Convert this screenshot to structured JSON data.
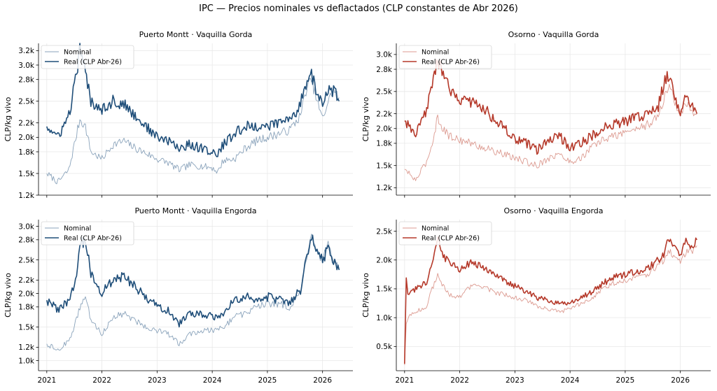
{
  "figure": {
    "title": "IPC — Precios nominales vs deflactados (CLP constantes de Abr 2026)"
  },
  "colors": {
    "blue_real": "#1f4e79",
    "blue_nominal": "#8aa3bb",
    "red_real": "#b5392a",
    "red_nominal": "#dc9a90",
    "grid": "#e8e8e8"
  },
  "chart_data": [
    {
      "type": "line",
      "title": "Puerto Montt · Vaquilla Gorda",
      "ylabel": "CLP/kg vivo",
      "xlabel": "",
      "ylim": [
        1200,
        3300
      ],
      "yticks": [
        1200,
        1500,
        1800,
        2000,
        2200,
        2500,
        2800,
        3000,
        3200
      ],
      "ytick_labels": [
        "1.2k",
        "1.5k",
        "1.8k",
        "2.0k",
        "2.2k",
        "2.5k",
        "2.8k",
        "3.0k",
        "3.2k"
      ],
      "xlim": [
        2020.85,
        2026.55
      ],
      "xticks": [
        2021,
        2022,
        2023,
        2024,
        2025,
        2026
      ],
      "xtick_labels": [
        "",
        "",
        "",
        "",
        "",
        ""
      ],
      "legend": "top-left",
      "palette": "blue",
      "grid": true,
      "series": [
        {
          "name": "Nominal",
          "role": "nominal",
          "x": [
            2021.0,
            2021.2,
            2021.4,
            2021.5,
            2021.6,
            2021.7,
            2021.8,
            2022.0,
            2022.2,
            2022.4,
            2022.6,
            2022.8,
            2023.0,
            2023.2,
            2023.4,
            2023.6,
            2023.8,
            2024.0,
            2024.1,
            2024.2,
            2024.4,
            2024.6,
            2024.8,
            2025.0,
            2025.2,
            2025.4,
            2025.5,
            2025.6,
            2025.7,
            2025.8,
            2025.9,
            2026.0,
            2026.1,
            2026.2,
            2026.3
          ],
          "y": [
            1500,
            1380,
            1550,
            1900,
            2250,
            2150,
            1800,
            1700,
            1900,
            1950,
            1850,
            1780,
            1700,
            1650,
            1550,
            1620,
            1600,
            1580,
            1520,
            1680,
            1700,
            1850,
            1950,
            2000,
            2050,
            2100,
            2200,
            2300,
            2650,
            2800,
            2500,
            2250,
            2500,
            2650,
            2550
          ]
        },
        {
          "name": "Real (CLP Abr-26)",
          "role": "real",
          "x": [
            2021.0,
            2021.2,
            2021.4,
            2021.5,
            2021.6,
            2021.7,
            2021.8,
            2022.0,
            2022.2,
            2022.4,
            2022.6,
            2022.8,
            2023.0,
            2023.2,
            2023.4,
            2023.6,
            2023.8,
            2024.0,
            2024.1,
            2024.2,
            2024.4,
            2024.6,
            2024.8,
            2025.0,
            2025.2,
            2025.4,
            2025.5,
            2025.6,
            2025.7,
            2025.8,
            2025.9,
            2026.0,
            2026.1,
            2026.2,
            2026.3
          ],
          "y": [
            2150,
            2000,
            2300,
            2700,
            3200,
            2900,
            2500,
            2400,
            2500,
            2450,
            2300,
            2150,
            2000,
            1950,
            1850,
            1900,
            1850,
            1800,
            1750,
            1900,
            2050,
            2150,
            2150,
            2150,
            2200,
            2250,
            2300,
            2500,
            2750,
            2880,
            2600,
            2450,
            2650,
            2650,
            2500
          ]
        }
      ]
    },
    {
      "type": "line",
      "title": "Osorno · Vaquilla Gorda",
      "ylabel": "CLP/kg vivo",
      "xlabel": "",
      "ylim": [
        1100,
        3150
      ],
      "yticks": [
        1200,
        1500,
        1800,
        2000,
        2200,
        2500,
        2800,
        3000
      ],
      "ytick_labels": [
        "1.2k",
        "1.5k",
        "1.8k",
        "2.0k",
        "2.2k",
        "2.5k",
        "2.8k",
        "3.0k"
      ],
      "xlim": [
        2020.85,
        2026.55
      ],
      "xticks": [
        2021,
        2022,
        2023,
        2024,
        2025,
        2026
      ],
      "xtick_labels": [
        "",
        "",
        "",
        "",
        "",
        ""
      ],
      "legend": "top-left",
      "palette": "red",
      "grid": true,
      "series": [
        {
          "name": "Nominal",
          "role": "nominal",
          "x": [
            2021.0,
            2021.2,
            2021.4,
            2021.5,
            2021.6,
            2021.7,
            2021.8,
            2022.0,
            2022.2,
            2022.4,
            2022.6,
            2022.8,
            2023.0,
            2023.2,
            2023.4,
            2023.6,
            2023.8,
            2024.0,
            2024.2,
            2024.4,
            2024.6,
            2024.8,
            2025.0,
            2025.2,
            2025.4,
            2025.6,
            2025.7,
            2025.8,
            2025.9,
            2026.0,
            2026.1,
            2026.2,
            2026.3
          ],
          "y": [
            1450,
            1300,
            1550,
            1800,
            2150,
            2000,
            1900,
            1850,
            1800,
            1750,
            1700,
            1650,
            1600,
            1550,
            1500,
            1600,
            1650,
            1550,
            1600,
            1750,
            1850,
            1900,
            1950,
            2000,
            2050,
            2150,
            2400,
            2600,
            2350,
            2200,
            2350,
            2250,
            2200
          ]
        },
        {
          "name": "Real (CLP Abr-26)",
          "role": "real",
          "x": [
            2021.0,
            2021.2,
            2021.4,
            2021.5,
            2021.6,
            2021.7,
            2021.8,
            2022.0,
            2022.2,
            2022.4,
            2022.6,
            2022.8,
            2023.0,
            2023.2,
            2023.4,
            2023.6,
            2023.8,
            2024.0,
            2024.2,
            2024.4,
            2024.6,
            2024.8,
            2025.0,
            2025.2,
            2025.4,
            2025.6,
            2025.7,
            2025.8,
            2025.9,
            2026.0,
            2026.1,
            2026.2,
            2026.3
          ],
          "y": [
            2100,
            1900,
            2250,
            2600,
            2950,
            2700,
            2550,
            2400,
            2350,
            2300,
            2150,
            2000,
            1850,
            1800,
            1700,
            1850,
            1900,
            1750,
            1800,
            1900,
            2000,
            2050,
            2100,
            2150,
            2200,
            2300,
            2600,
            2750,
            2450,
            2200,
            2500,
            2300,
            2200
          ]
        }
      ]
    },
    {
      "type": "line",
      "title": "Puerto Montt · Vaquilla Engorda",
      "ylabel": "CLP/kg vivo",
      "xlabel": "",
      "ylim": [
        850,
        3100
      ],
      "yticks": [
        1000,
        1200,
        1500,
        1800,
        2000,
        2200,
        2500,
        2800,
        3000
      ],
      "ytick_labels": [
        "1.0k",
        "1.2k",
        "1.5k",
        "1.8k",
        "2.0k",
        "2.2k",
        "2.5k",
        "2.8k",
        "3.0k"
      ],
      "xlim": [
        2020.85,
        2026.55
      ],
      "xticks": [
        2021,
        2022,
        2023,
        2024,
        2025,
        2026
      ],
      "xtick_labels": [
        "2021",
        "2022",
        "2023",
        "2024",
        "2025",
        "2026"
      ],
      "legend": "top-left",
      "palette": "blue",
      "grid": true,
      "series": [
        {
          "name": "Nominal",
          "role": "nominal",
          "x": [
            2021.0,
            2021.2,
            2021.4,
            2021.5,
            2021.6,
            2021.7,
            2021.8,
            2022.0,
            2022.2,
            2022.4,
            2022.6,
            2022.8,
            2023.0,
            2023.2,
            2023.4,
            2023.6,
            2023.8,
            2024.0,
            2024.2,
            2024.4,
            2024.6,
            2024.8,
            2025.0,
            2025.2,
            2025.4,
            2025.6,
            2025.7,
            2025.8,
            2025.9,
            2026.0,
            2026.1,
            2026.2,
            2026.3
          ],
          "y": [
            1250,
            1150,
            1300,
            1500,
            1800,
            1950,
            1600,
            1400,
            1650,
            1700,
            1600,
            1500,
            1450,
            1400,
            1250,
            1400,
            1450,
            1450,
            1500,
            1650,
            1700,
            1800,
            1850,
            1850,
            1800,
            2000,
            2500,
            2850,
            2600,
            2500,
            2700,
            2500,
            2350
          ]
        },
        {
          "name": "Real (CLP Abr-26)",
          "role": "real",
          "x": [
            2021.0,
            2021.2,
            2021.4,
            2021.5,
            2021.6,
            2021.7,
            2021.8,
            2022.0,
            2022.2,
            2022.4,
            2022.6,
            2022.8,
            2023.0,
            2023.2,
            2023.4,
            2023.6,
            2023.8,
            2024.0,
            2024.2,
            2024.4,
            2024.6,
            2024.8,
            2025.0,
            2025.2,
            2025.4,
            2025.6,
            2025.7,
            2025.8,
            2025.9,
            2026.0,
            2026.1,
            2026.2,
            2026.3
          ],
          "y": [
            1900,
            1750,
            1900,
            2100,
            2700,
            2800,
            2300,
            2000,
            2200,
            2250,
            2100,
            1950,
            1800,
            1750,
            1550,
            1700,
            1700,
            1650,
            1700,
            1900,
            1950,
            1900,
            1950,
            1900,
            1850,
            2050,
            2550,
            2850,
            2600,
            2500,
            2650,
            2450,
            2350
          ]
        }
      ]
    },
    {
      "type": "line",
      "title": "Osorno · Vaquilla Engorda",
      "ylabel": "CLP/kg vivo",
      "xlabel": "",
      "ylim": [
        80,
        2700
      ],
      "yticks": [
        500,
        1000,
        1500,
        2000,
        2500
      ],
      "ytick_labels": [
        "0.5k",
        "1.0k",
        "1.5k",
        "2.0k",
        "2.5k"
      ],
      "xlim": [
        2020.85,
        2026.55
      ],
      "xticks": [
        2021,
        2022,
        2023,
        2024,
        2025,
        2026
      ],
      "xtick_labels": [
        "2021",
        "2022",
        "2023",
        "2024",
        "2025",
        "2026"
      ],
      "legend": "top-left",
      "palette": "red",
      "grid": true,
      "series": [
        {
          "name": "Nominal",
          "role": "nominal",
          "x": [
            2021.0,
            2021.03,
            2021.06,
            2021.2,
            2021.4,
            2021.5,
            2021.6,
            2021.7,
            2021.8,
            2022.0,
            2022.2,
            2022.4,
            2022.6,
            2022.8,
            2023.0,
            2023.2,
            2023.4,
            2023.6,
            2023.8,
            2024.0,
            2024.2,
            2024.4,
            2024.6,
            2024.8,
            2025.0,
            2025.2,
            2025.4,
            2025.6,
            2025.7,
            2025.8,
            2025.9,
            2026.0,
            2026.1,
            2026.2,
            2026.3
          ],
          "y": [
            180,
            900,
            1000,
            1100,
            1200,
            1500,
            1750,
            1550,
            1400,
            1350,
            1550,
            1550,
            1450,
            1400,
            1350,
            1300,
            1200,
            1150,
            1100,
            1150,
            1250,
            1350,
            1500,
            1600,
            1650,
            1700,
            1750,
            1900,
            2000,
            2150,
            2050,
            1950,
            2150,
            2150,
            2250
          ]
        },
        {
          "name": "Real (CLP Abr-26)",
          "role": "real",
          "x": [
            2021.0,
            2021.03,
            2021.06,
            2021.2,
            2021.4,
            2021.5,
            2021.6,
            2021.7,
            2021.8,
            2022.0,
            2022.2,
            2022.4,
            2022.6,
            2022.8,
            2023.0,
            2023.2,
            2023.4,
            2023.6,
            2023.8,
            2024.0,
            2024.2,
            2024.4,
            2024.6,
            2024.8,
            2025.0,
            2025.2,
            2025.4,
            2025.6,
            2025.7,
            2025.8,
            2025.9,
            2026.0,
            2026.1,
            2026.2,
            2026.3
          ],
          "y": [
            200,
            1700,
            1400,
            1500,
            1600,
            2000,
            2400,
            2100,
            1950,
            1850,
            1950,
            1900,
            1750,
            1650,
            1550,
            1450,
            1350,
            1300,
            1250,
            1250,
            1350,
            1450,
            1600,
            1700,
            1750,
            1800,
            1850,
            2000,
            2100,
            2400,
            2250,
            2100,
            2300,
            2250,
            2350
          ]
        }
      ]
    }
  ]
}
